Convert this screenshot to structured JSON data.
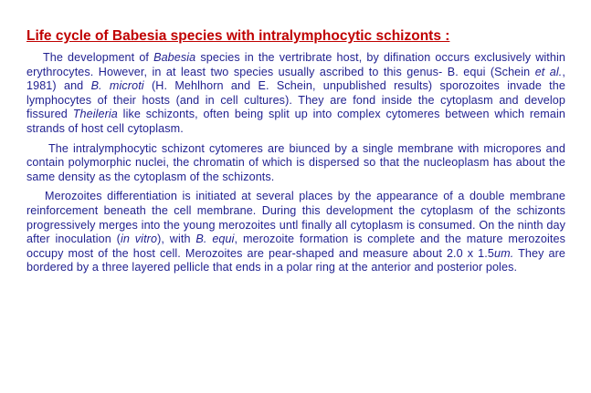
{
  "title": "Life cycle of Babesia species with intralymphocytic schizonts :",
  "paragraphs": [
    {
      "segments": [
        {
          "text": "The development of ",
          "italic": false
        },
        {
          "text": "Babesia",
          "italic": true
        },
        {
          "text": " species in the vertribrate host, by difination occurs exclusively within erythrocytes. However, in at least two species usually ascribed to this genus- B. equi (Schein ",
          "italic": false
        },
        {
          "text": "et al.",
          "italic": true
        },
        {
          "text": ", 1981) and ",
          "italic": false
        },
        {
          "text": "B. microti",
          "italic": true
        },
        {
          "text": " (H. Mehlhorn and E. Schein, unpublished results) sporozoites invade the lymphocytes of their hosts (and in cell cultures). They are fond inside the cytoplasm and develop fissured ",
          "italic": false
        },
        {
          "text": "Theileria",
          "italic": true
        },
        {
          "text": " like schizonts, often being split up into complex cytomeres between which remain strands of host cell cytoplasm.",
          "italic": false
        }
      ]
    },
    {
      "segments": [
        {
          "text": "The intralymphocytic schizont cytomeres are biunced by a single membrane with micropores and contain polymorphic nuclei, the chromatin of which is dispersed so that the nucleoplasm has about the same density as the cytoplasm of the schizonts.",
          "italic": false
        }
      ]
    },
    {
      "segments": [
        {
          "text": "Merozoites differentiation is initiated at several places by the appearance of a double membrane reinforcement beneath the cell membrane. During this development the cytoplasm of the schizonts progressively merges into the young merozoites untl finally all cytoplasm is consumed. On the ninth day after inoculation (",
          "italic": false
        },
        {
          "text": "in vitro",
          "italic": true
        },
        {
          "text": "), with ",
          "italic": false
        },
        {
          "text": "B. equi",
          "italic": true
        },
        {
          "text": ", merozoite formation is complete and the mature merozoites occupy most of the host cell. Merozoites are pear-shaped and measure about 2.0 x 1.5",
          "italic": false
        },
        {
          "text": "um.",
          "italic": true
        },
        {
          "text": " They are bordered by a three layered pellicle that ends in a polar ring at the anterior and posterior poles.",
          "italic": false
        }
      ]
    }
  ],
  "colors": {
    "title": "#c00000",
    "body": "#1f1f8f",
    "background": "#ffffff"
  }
}
